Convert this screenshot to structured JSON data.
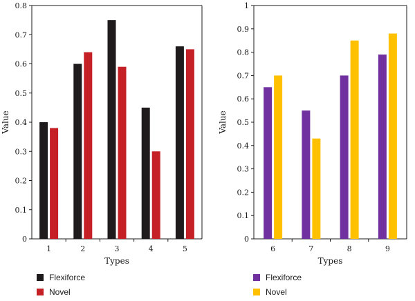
{
  "chart_data": [
    {
      "type": "bar",
      "xlabel": "Types",
      "ylabel": "Value",
      "ylim": [
        0,
        0.8
      ],
      "yticks": [
        "0",
        "0.1",
        "0.2",
        "0.3",
        "0.4",
        "0.5",
        "0.6",
        "0.7",
        "0.8"
      ],
      "categories": [
        "1",
        "2",
        "3",
        "4",
        "5"
      ],
      "series": [
        {
          "name": "Flexiforce",
          "values": [
            0.4,
            0.6,
            0.75,
            0.45,
            0.66
          ],
          "color": "#1f1a1b"
        },
        {
          "name": "Novel",
          "values": [
            0.38,
            0.64,
            0.59,
            0.3,
            0.65
          ],
          "color": "#c42026"
        }
      ],
      "legend": "bottom",
      "grid": false
    },
    {
      "type": "bar",
      "xlabel": "Types",
      "ylabel": "Value",
      "ylim": [
        0,
        1
      ],
      "yticks": [
        "0",
        "0.1",
        "0.2",
        "0.3",
        "0.4",
        "0.5",
        "0.6",
        "0.7",
        "0.8",
        "0.9",
        "1"
      ],
      "categories": [
        "6",
        "7",
        "8",
        "9"
      ],
      "series": [
        {
          "name": "Flexiforce",
          "values": [
            0.65,
            0.55,
            0.7,
            0.79
          ],
          "color": "#7030a0"
        },
        {
          "name": "Novel",
          "values": [
            0.7,
            0.43,
            0.85,
            0.88
          ],
          "color": "#ffc000"
        }
      ],
      "legend": "bottom",
      "grid": false
    }
  ]
}
